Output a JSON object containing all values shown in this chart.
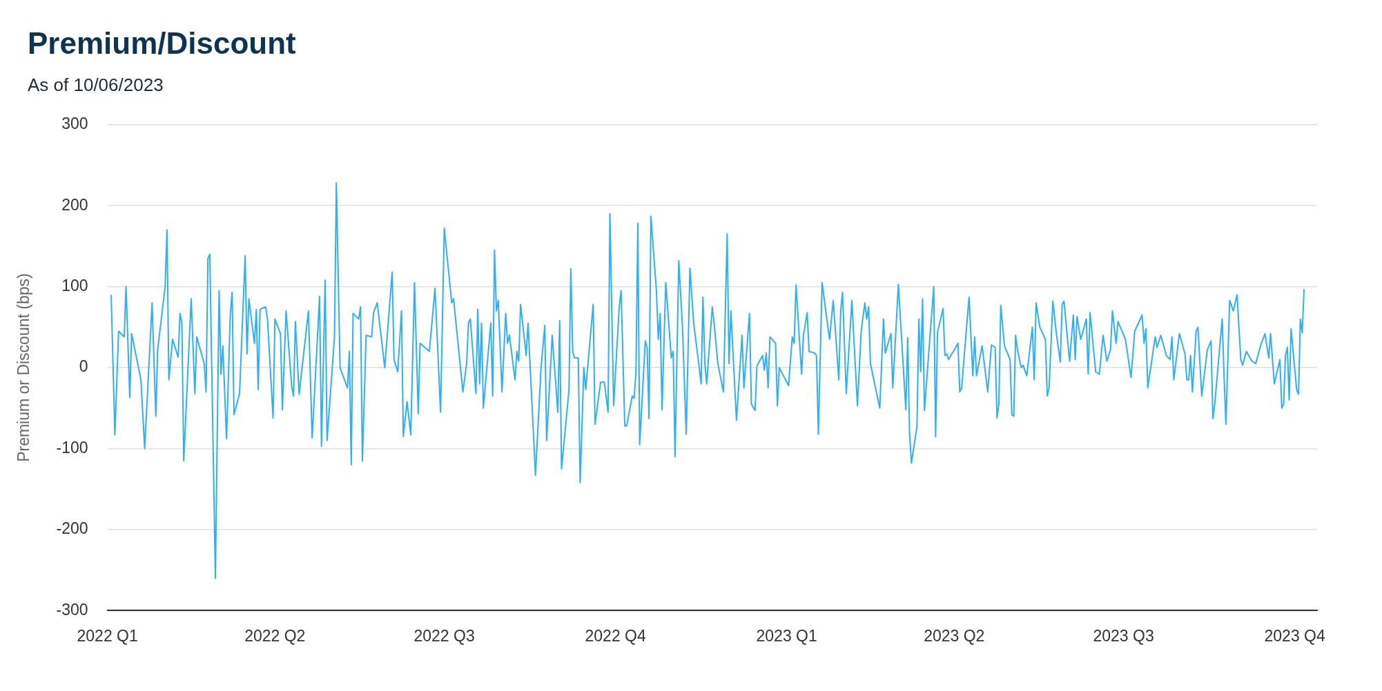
{
  "chart_data": {
    "type": "line",
    "title": "Premium/Discount",
    "subtitle": "As of 10/06/2023",
    "ylabel": "Premium or Discount (bps)",
    "x": [
      "2022-01-03",
      "2022-01-05",
      "2022-01-07",
      "2022-01-10",
      "2022-01-11",
      "2022-01-13",
      "2022-01-14",
      "2022-01-19",
      "2022-01-21",
      "2022-01-25",
      "2022-01-27",
      "2022-01-28",
      "2022-02-01",
      "2022-02-02",
      "2022-02-03",
      "2022-02-05",
      "2022-02-08",
      "2022-02-09",
      "2022-02-10",
      "2022-02-11",
      "2022-02-15",
      "2022-02-17",
      "2022-02-18",
      "2022-02-22",
      "2022-02-23",
      "2022-02-24",
      "2022-02-25",
      "2022-02-28",
      "2022-03-02",
      "2022-03-03",
      "2022-03-04",
      "2022-03-06",
      "2022-03-08",
      "2022-03-09",
      "2022-03-10",
      "2022-03-13",
      "2022-03-16",
      "2022-03-17",
      "2022-03-18",
      "2022-03-21",
      "2022-03-22",
      "2022-03-23",
      "2022-03-24",
      "2022-03-27",
      "2022-03-28",
      "2022-03-31",
      "2022-04-01",
      "2022-04-04",
      "2022-04-05",
      "2022-04-07",
      "2022-04-10",
      "2022-04-11",
      "2022-04-12",
      "2022-04-14",
      "2022-04-19",
      "2022-04-21",
      "2022-04-25",
      "2022-04-26",
      "2022-04-28",
      "2022-04-29",
      "2022-05-03",
      "2022-05-04",
      "2022-05-06",
      "2022-05-10",
      "2022-05-11",
      "2022-05-12",
      "2022-05-13",
      "2022-05-16",
      "2022-05-17",
      "2022-05-18",
      "2022-05-20",
      "2022-05-23",
      "2022-05-24",
      "2022-05-26",
      "2022-05-30",
      "2022-06-03",
      "2022-06-04",
      "2022-06-06",
      "2022-06-08",
      "2022-06-09",
      "2022-06-11",
      "2022-06-13",
      "2022-06-15",
      "2022-06-17",
      "2022-06-18",
      "2022-06-22",
      "2022-06-23",
      "2022-06-26",
      "2022-06-29",
      "2022-07-01",
      "2022-07-05",
      "2022-07-06",
      "2022-07-11",
      "2022-07-13",
      "2022-07-14",
      "2022-07-15",
      "2022-07-18",
      "2022-07-19",
      "2022-07-20",
      "2022-07-21",
      "2022-07-22",
      "2022-07-26",
      "2022-07-27",
      "2022-07-28",
      "2022-07-29",
      "2022-07-30",
      "2022-08-01",
      "2022-08-03",
      "2022-08-04",
      "2022-08-05",
      "2022-08-08",
      "2022-08-09",
      "2022-08-10",
      "2022-08-11",
      "2022-08-14",
      "2022-08-15",
      "2022-08-19",
      "2022-08-22",
      "2022-08-24",
      "2022-08-25",
      "2022-08-28",
      "2022-08-31",
      "2022-09-01",
      "2022-09-02",
      "2022-09-06",
      "2022-09-07",
      "2022-09-08",
      "2022-09-09",
      "2022-09-11",
      "2022-09-12",
      "2022-09-14",
      "2022-09-15",
      "2022-09-19",
      "2022-09-20",
      "2022-09-23",
      "2022-09-25",
      "2022-09-27",
      "2022-09-28",
      "2022-09-30",
      "2022-10-03",
      "2022-10-04",
      "2022-10-06",
      "2022-10-07",
      "2022-10-10",
      "2022-10-11",
      "2022-10-12",
      "2022-10-13",
      "2022-10-14",
      "2022-10-17",
      "2022-10-18",
      "2022-10-19",
      "2022-10-20",
      "2022-10-23",
      "2022-10-24",
      "2022-10-25",
      "2022-10-26",
      "2022-10-28",
      "2022-10-31",
      "2022-11-01",
      "2022-11-02",
      "2022-11-04",
      "2022-11-06",
      "2022-11-08",
      "2022-11-10",
      "2022-11-12",
      "2022-11-15",
      "2022-11-16",
      "2022-11-17",
      "2022-11-18",
      "2022-11-19",
      "2022-11-22",
      "2022-11-23",
      "2022-11-25",
      "2022-11-28",
      "2022-11-30",
      "2022-12-01",
      "2022-12-02",
      "2022-12-05",
      "2022-12-08",
      "2022-12-09",
      "2022-12-12",
      "2022-12-13",
      "2022-12-15",
      "2022-12-16",
      "2022-12-19",
      "2022-12-20",
      "2022-12-21",
      "2022-12-22",
      "2022-12-23",
      "2022-12-26",
      "2022-12-27",
      "2022-12-28",
      "2023-01-02",
      "2023-01-04",
      "2023-01-05",
      "2023-01-06",
      "2023-01-09",
      "2023-01-10",
      "2023-01-12",
      "2023-01-13",
      "2023-01-16",
      "2023-01-17",
      "2023-01-18",
      "2023-01-20",
      "2023-01-24",
      "2023-01-26",
      "2023-01-29",
      "2023-01-30",
      "2023-01-31",
      "2023-02-02",
      "2023-02-05",
      "2023-02-08",
      "2023-02-10",
      "2023-02-12",
      "2023-02-13",
      "2023-02-14",
      "2023-02-15",
      "2023-02-20",
      "2023-02-22",
      "2023-02-23",
      "2023-02-26",
      "2023-02-27",
      "2023-03-02",
      "2023-03-06",
      "2023-03-07",
      "2023-03-08",
      "2023-03-09",
      "2023-03-12",
      "2023-03-13",
      "2023-03-14",
      "2023-03-15",
      "2023-03-16",
      "2023-03-21",
      "2023-03-22",
      "2023-03-23",
      "2023-03-26",
      "2023-03-27",
      "2023-03-28",
      "2023-03-29",
      "2023-04-03",
      "2023-04-04",
      "2023-04-05",
      "2023-04-08",
      "2023-04-09",
      "2023-04-11",
      "2023-04-12",
      "2023-04-13",
      "2023-04-16",
      "2023-04-19",
      "2023-04-21",
      "2023-04-23",
      "2023-04-24",
      "2023-04-25",
      "2023-04-26",
      "2023-04-28",
      "2023-05-01",
      "2023-05-02",
      "2023-05-03",
      "2023-05-04",
      "2023-05-05",
      "2023-05-07",
      "2023-05-08",
      "2023-05-10",
      "2023-05-13",
      "2023-05-14",
      "2023-05-15",
      "2023-05-17",
      "2023-05-20",
      "2023-05-21",
      "2023-05-22",
      "2023-05-24",
      "2023-05-26",
      "2023-05-28",
      "2023-05-29",
      "2023-05-30",
      "2023-06-02",
      "2023-06-04",
      "2023-06-05",
      "2023-06-06",
      "2023-06-08",
      "2023-06-11",
      "2023-06-12",
      "2023-06-13",
      "2023-06-16",
      "2023-06-18",
      "2023-06-20",
      "2023-06-22",
      "2023-06-24",
      "2023-06-25",
      "2023-06-27",
      "2023-06-28",
      "2023-07-02",
      "2023-07-05",
      "2023-07-07",
      "2023-07-09",
      "2023-07-11",
      "2023-07-12",
      "2023-07-13",
      "2023-07-14",
      "2023-07-18",
      "2023-07-19",
      "2023-07-21",
      "2023-07-24",
      "2023-07-26",
      "2023-07-27",
      "2023-07-28",
      "2023-07-31",
      "2023-08-03",
      "2023-08-04",
      "2023-08-05",
      "2023-08-06",
      "2023-08-07",
      "2023-08-09",
      "2023-08-10",
      "2023-08-12",
      "2023-08-15",
      "2023-08-17",
      "2023-08-18",
      "2023-08-19",
      "2023-08-23",
      "2023-08-24",
      "2023-08-25",
      "2023-08-27",
      "2023-08-29",
      "2023-08-31",
      "2023-09-02",
      "2023-09-03",
      "2023-09-05",
      "2023-09-08",
      "2023-09-10",
      "2023-09-13",
      "2023-09-15",
      "2023-09-17",
      "2023-09-18",
      "2023-09-20",
      "2023-09-23",
      "2023-09-24",
      "2023-09-25",
      "2023-09-26",
      "2023-09-27",
      "2023-09-28",
      "2023-09-29",
      "2023-10-02",
      "2023-10-03",
      "2023-10-04",
      "2023-10-05",
      "2023-10-06"
    ],
    "series": [
      {
        "color": "#2caffe",
        "values": [
          90,
          -83,
          45,
          38,
          100,
          -37,
          42,
          -15,
          -100,
          80,
          -60,
          22,
          100,
          170,
          -15,
          35,
          13,
          67,
          55,
          -115,
          85,
          -32,
          38,
          5,
          -30,
          135,
          140,
          -260,
          95,
          -8,
          27,
          -88,
          65,
          93,
          -58,
          -32,
          138,
          17,
          85,
          30,
          72,
          -27,
          72,
          75,
          60,
          -62,
          60,
          42,
          -52,
          70,
          -23,
          -35,
          57,
          -33,
          70,
          -87,
          88,
          -97,
          108,
          -90,
          38,
          228,
          0,
          -25,
          20,
          -120,
          67,
          60,
          75,
          -115,
          40,
          38,
          68,
          80,
          0,
          118,
          10,
          -5,
          70,
          -85,
          -42,
          -83,
          105,
          -57,
          30,
          22,
          20,
          98,
          -55,
          172,
          80,
          85,
          -30,
          5,
          55,
          60,
          -32,
          72,
          -20,
          55,
          -50,
          55,
          -35,
          145,
          70,
          83,
          -30,
          67,
          30,
          40,
          -15,
          20,
          8,
          78,
          15,
          55,
          -133,
          0,
          52,
          -90,
          40,
          -55,
          58,
          -125,
          -28,
          122,
          20,
          12,
          12,
          -142,
          0,
          -27,
          78,
          -70,
          -18,
          -18,
          -55,
          190,
          -47,
          75,
          95,
          -72,
          -72,
          -35,
          -38,
          -5,
          178,
          -95,
          33,
          25,
          -63,
          187,
          95,
          35,
          67,
          -52,
          105,
          12,
          20,
          -110,
          132,
          50,
          -82,
          123,
          55,
          0,
          -20,
          87,
          5,
          -20,
          75,
          55,
          5,
          -30,
          165,
          5,
          70,
          -65,
          40,
          -25,
          67,
          -45,
          -53,
          2,
          15,
          -3,
          18,
          -25,
          38,
          30,
          -47,
          0,
          -22,
          38,
          30,
          102,
          -8,
          40,
          68,
          20,
          18,
          15,
          -82,
          105,
          35,
          83,
          -15,
          70,
          93,
          -32,
          83,
          -47,
          45,
          80,
          60,
          75,
          5,
          -50,
          60,
          18,
          42,
          -25,
          103,
          -52,
          37,
          -80,
          -118,
          -73,
          60,
          -5,
          85,
          -53,
          100,
          -85,
          43,
          73,
          15,
          17,
          10,
          30,
          -30,
          -25,
          60,
          87,
          -10,
          38,
          -10,
          27,
          -30,
          28,
          25,
          -62,
          -45,
          77,
          27,
          10,
          -58,
          -60,
          40,
          22,
          0,
          3,
          -10,
          50,
          -15,
          80,
          50,
          35,
          -35,
          -25,
          82,
          40,
          7,
          78,
          82,
          8,
          65,
          10,
          63,
          35,
          60,
          -8,
          68,
          -5,
          -8,
          40,
          8,
          22,
          70,
          30,
          57,
          35,
          -12,
          45,
          55,
          65,
          30,
          48,
          -25,
          38,
          25,
          40,
          15,
          10,
          38,
          -15,
          42,
          17,
          -15,
          -15,
          15,
          -30,
          45,
          50,
          -35,
          22,
          33,
          -63,
          -45,
          60,
          -10,
          -70,
          83,
          70,
          90,
          10,
          3,
          20,
          8,
          5,
          30,
          42,
          12,
          42,
          -20,
          10,
          -50,
          -45,
          15,
          25,
          -40,
          48,
          -27,
          -33,
          60,
          43,
          97
        ]
      }
    ],
    "xlim": [
      "2022-01-01",
      "2023-10-13"
    ],
    "xticks": [
      {
        "value": "2022-01-01",
        "label": "2022 Q1"
      },
      {
        "value": "2022-04-01",
        "label": "2022 Q2"
      },
      {
        "value": "2022-07-01",
        "label": "2022 Q3"
      },
      {
        "value": "2022-10-01",
        "label": "2022 Q4"
      },
      {
        "value": "2023-01-01",
        "label": "2023 Q1"
      },
      {
        "value": "2023-04-01",
        "label": "2023 Q2"
      },
      {
        "value": "2023-07-01",
        "label": "2023 Q3"
      },
      {
        "value": "2023-10-01",
        "label": "2023 Q4"
      }
    ],
    "ylim": [
      -300,
      300
    ],
    "yticks": [
      -300,
      -200,
      -100,
      0,
      100,
      200,
      300
    ],
    "grid": "y",
    "legend": false,
    "marker": "none",
    "line_style": "solid"
  }
}
